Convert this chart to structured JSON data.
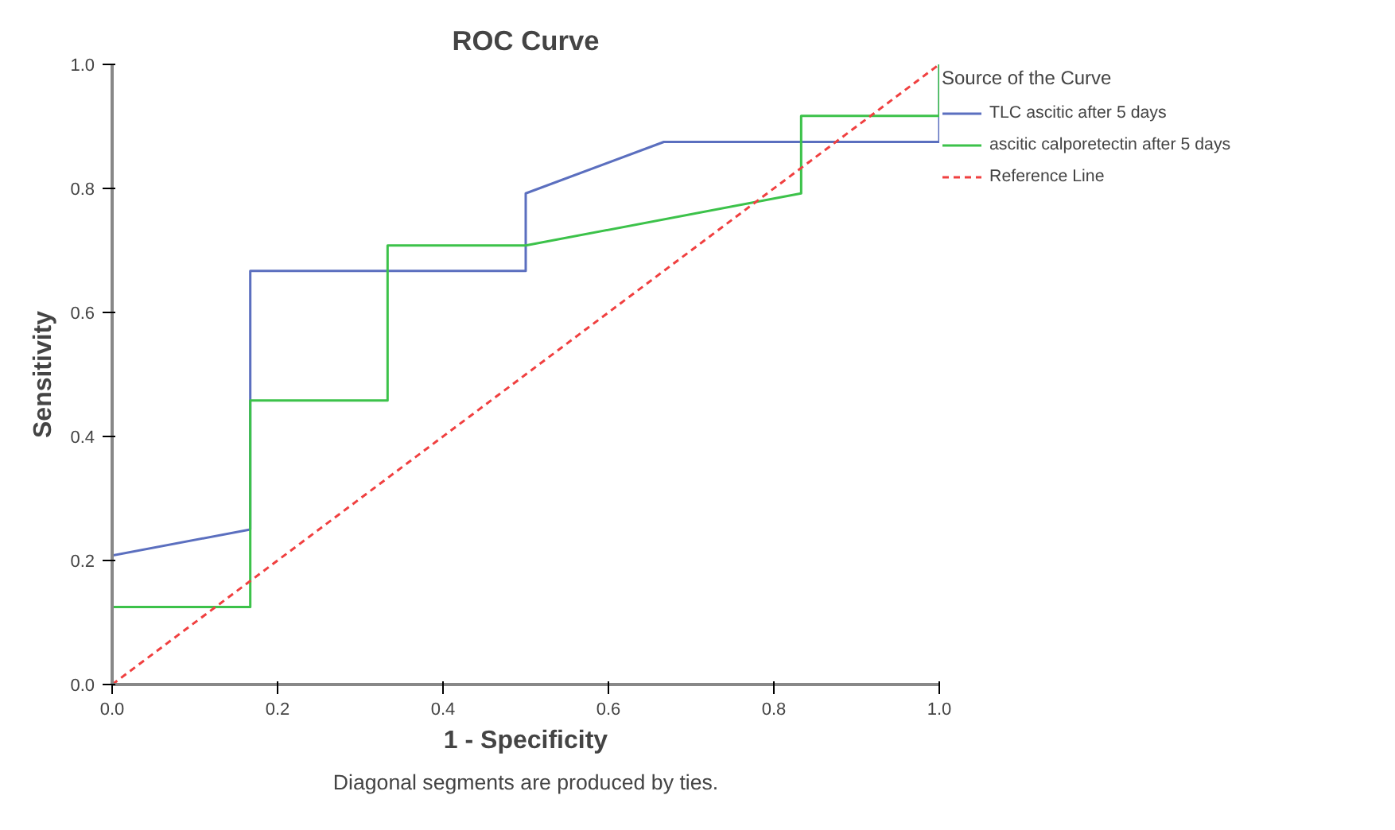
{
  "chart_data": {
    "type": "line",
    "title": "ROC Curve",
    "xlabel": "1 - Specificity",
    "ylabel": "Sensitivity",
    "legend_title": "Source of the Curve",
    "legend": "right",
    "grid": false,
    "line_style": "solid",
    "xlim": [
      0,
      1
    ],
    "ylim": [
      0,
      1
    ],
    "xticks": [
      {
        "value": 0,
        "label": "0.0"
      },
      {
        "value": 0.2,
        "label": "0.2"
      },
      {
        "value": 0.4,
        "label": "0.4"
      },
      {
        "value": 0.6,
        "label": "0.6"
      },
      {
        "value": 0.8,
        "label": "0.8"
      },
      {
        "value": 1,
        "label": "1.0"
      }
    ],
    "yticks": [
      {
        "value": 0,
        "label": "0.0"
      },
      {
        "value": 0.2,
        "label": "0.2"
      },
      {
        "value": 0.4,
        "label": "0.4"
      },
      {
        "value": 0.6,
        "label": "0.6"
      },
      {
        "value": 0.8,
        "label": "0.8"
      },
      {
        "value": 1,
        "label": "1.0"
      }
    ],
    "series": [
      {
        "name": "TLC ascitic after 5 days",
        "color": "#5b6fbf",
        "x": [
          0,
          0,
          0.167,
          0.167,
          0.5,
          0.5,
          0.667,
          1,
          1
        ],
        "values": [
          0,
          0.208,
          0.25,
          0.667,
          0.667,
          0.792,
          0.875,
          0.875,
          1
        ]
      },
      {
        "name": "ascitic calporetectin after 5 days",
        "color": "#3cc24a",
        "x": [
          0,
          0,
          0.167,
          0.167,
          0.333,
          0.333,
          0.5,
          0.833,
          0.833,
          1,
          1
        ],
        "values": [
          0,
          0.125,
          0.125,
          0.458,
          0.458,
          0.708,
          0.708,
          0.792,
          0.917,
          0.917,
          1
        ]
      },
      {
        "name": "Reference Line",
        "color": "#f04040",
        "line_style": "dashed",
        "x": [
          0,
          1
        ],
        "values": [
          0,
          1
        ]
      }
    ],
    "annotations": [
      "Diagonal segments are produced by ties."
    ]
  }
}
